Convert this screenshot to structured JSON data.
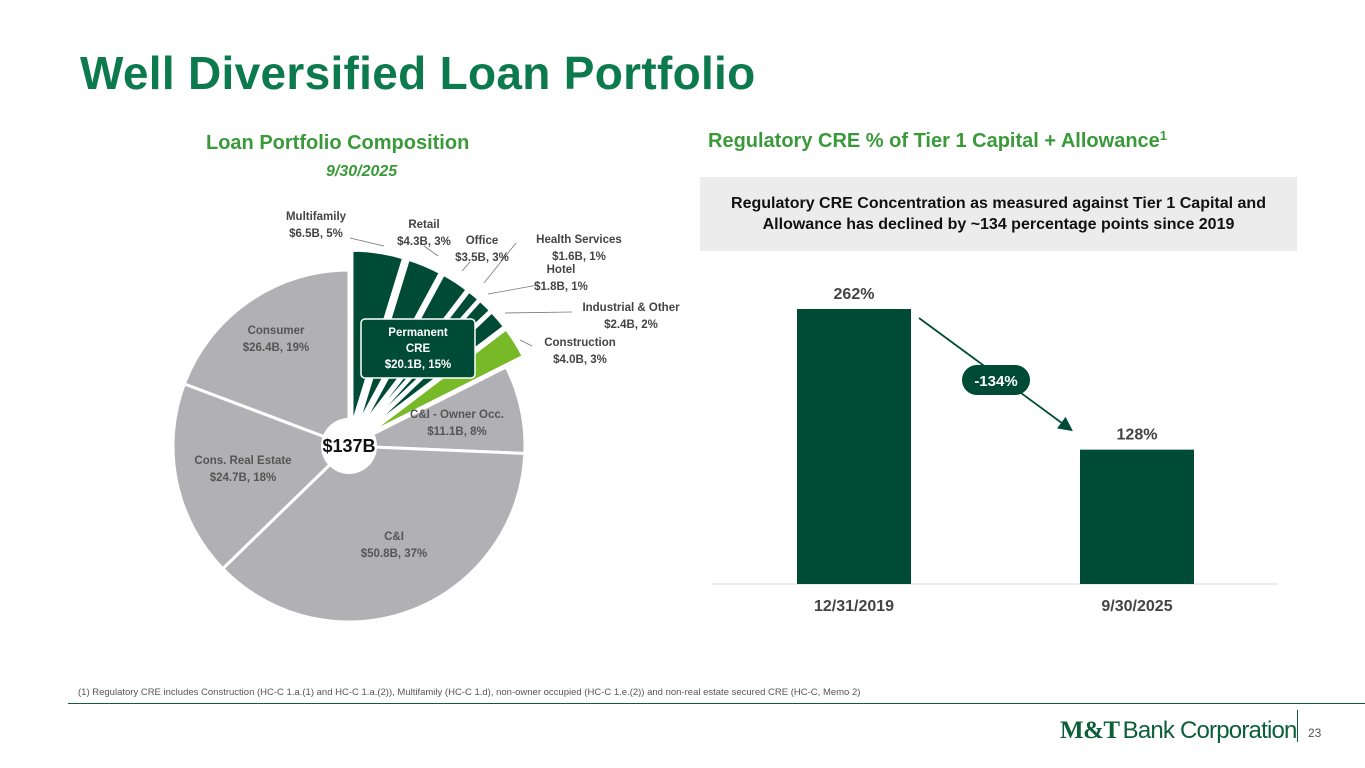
{
  "title": "Well Diversified Loan Portfolio",
  "footnote": "(1) Regulatory CRE includes Construction (HC-C 1.a.(1) and HC-C 1.a.(2)), Multifamily (HC-C 1.d), non-owner occupied (HC-C 1.e.(2)) and non-real estate secured CRE (HC-C, Memo 2)",
  "page_number": "23",
  "logo": {
    "bold": "M&T",
    "light": "Bank Corporation"
  },
  "colors": {
    "title_green": "#0d7a4e",
    "subtitle_green": "#3a9a3a",
    "dark_green": "#004b35",
    "lime_green": "#78b928",
    "gray": "#b1b0b4"
  },
  "callout": "Regulatory CRE Concentration as measured against Tier 1 Capital and Allowance has declined by ~134 percentage points since 2019",
  "chart_data": [
    {
      "type": "pie",
      "title": "Loan Portfolio Composition",
      "subtitle": "9/30/2025",
      "center_label": "$137B",
      "group_label": {
        "line1": "Permanent",
        "line2": "CRE",
        "line3": "$20.1B, 15%"
      },
      "slices": [
        {
          "name": "Multifamily",
          "value_label": "$6.5B, 5%",
          "value": 6.5,
          "group": "cre"
        },
        {
          "name": "Retail",
          "value_label": "$4.3B, 3%",
          "value": 4.3,
          "group": "cre"
        },
        {
          "name": "Office",
          "value_label": "$3.5B, 3%",
          "value": 3.5,
          "group": "cre"
        },
        {
          "name": "Health Services",
          "value_label": "$1.6B, 1%",
          "value": 1.6,
          "group": "cre"
        },
        {
          "name": "Hotel",
          "value_label": "$1.8B, 1%",
          "value": 1.8,
          "group": "cre"
        },
        {
          "name": "Industrial & Other",
          "value_label": "$2.4B, 2%",
          "value": 2.4,
          "group": "cre"
        },
        {
          "name": "Construction",
          "value_label": "$4.0B, 3%",
          "value": 4.0,
          "group": "construction"
        },
        {
          "name": "C&I - Owner Occ.",
          "value_label": "$11.1B, 8%",
          "value": 11.1,
          "group": "other"
        },
        {
          "name": "C&I",
          "value_label": "$50.8B, 37%",
          "value": 50.8,
          "group": "other"
        },
        {
          "name": "Cons. Real Estate",
          "value_label": "$24.7B, 18%",
          "value": 24.7,
          "group": "other"
        },
        {
          "name": "Consumer",
          "value_label": "$26.4B, 19%",
          "value": 26.4,
          "group": "other"
        }
      ]
    },
    {
      "type": "bar",
      "title": "Regulatory CRE % of Tier 1 Capital + Allowance",
      "title_superscript": "1",
      "categories": [
        "12/31/2019",
        "9/30/2025"
      ],
      "values": [
        262,
        128
      ],
      "value_labels": [
        "262%",
        "128%"
      ],
      "change_label": "-134%",
      "ylim": [
        0,
        262
      ]
    }
  ]
}
